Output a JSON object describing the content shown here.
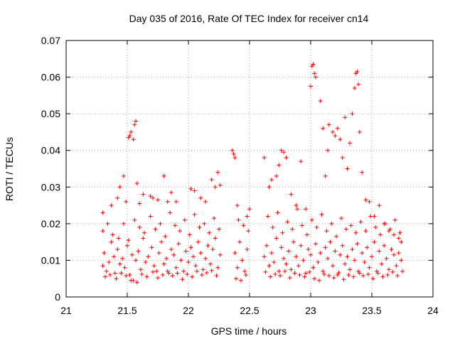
{
  "chart_data": {
    "type": "scatter",
    "title": "Day 035 of 2016, Rate Of TEC Index for receiver cn14",
    "xlabel": "GPS time / hours",
    "ylabel": "ROTI / TECUs",
    "xlim": [
      21,
      24
    ],
    "ylim": [
      0,
      0.07
    ],
    "grid": true,
    "marker": "+",
    "color": "#ff0000",
    "x_ticks": [
      "21",
      "21.5",
      "22",
      "22.5",
      "23",
      "23.5",
      "24"
    ],
    "y_ticks": [
      "0",
      "0.01",
      "0.02",
      "0.03",
      "0.04",
      "0.05",
      "0.06",
      "0.07"
    ],
    "series": [
      {
        "name": "ROTI",
        "x": [
          21.3,
          21.31,
          21.33,
          21.35,
          21.37,
          21.39,
          21.4,
          21.42,
          21.44,
          21.46,
          21.48,
          21.5,
          21.52,
          21.54,
          21.55,
          21.57,
          21.59,
          21.61,
          21.63,
          21.65,
          21.67,
          21.7,
          21.72,
          21.74,
          21.76,
          21.78,
          21.8,
          21.82,
          21.84,
          21.86,
          21.88,
          21.9,
          21.92,
          21.94,
          21.96,
          21.98,
          22.0,
          22.02,
          22.04,
          22.06,
          22.08,
          22.1,
          22.12,
          22.14,
          22.16,
          22.18,
          22.2,
          22.22,
          22.24,
          22.26,
          22.38,
          22.4,
          22.42,
          22.44,
          22.46,
          22.48,
          22.62,
          22.64,
          22.66,
          22.68,
          22.7,
          22.72,
          22.74,
          22.76,
          22.78,
          22.8,
          22.82,
          22.84,
          22.86,
          22.88,
          22.9,
          22.92,
          22.94,
          22.96,
          22.98,
          23.0,
          23.02,
          23.04,
          23.06,
          23.08,
          23.1,
          23.12,
          23.14,
          23.16,
          23.18,
          23.2,
          23.22,
          23.24,
          23.26,
          23.28,
          23.3,
          23.32,
          23.34,
          23.36,
          23.38,
          23.4,
          23.42,
          23.44,
          23.46,
          23.48,
          23.5,
          23.52,
          23.54,
          23.56,
          23.58,
          23.6,
          23.62,
          23.64,
          23.66,
          23.68,
          23.7,
          23.72,
          23.74,
          21.32,
          21.36,
          21.41,
          21.45,
          21.49,
          21.53,
          21.58,
          21.62,
          21.66,
          21.71,
          21.75,
          21.79,
          21.83,
          21.87,
          21.91,
          21.95,
          21.99,
          22.03,
          22.07,
          22.11,
          22.15,
          22.19,
          22.23,
          22.39,
          22.43,
          22.47,
          22.63,
          22.67,
          22.71,
          22.75,
          22.79,
          22.83,
          22.87,
          22.91,
          22.95,
          22.99,
          23.03,
          23.07,
          23.11,
          23.15,
          23.19,
          23.23,
          23.27,
          23.31,
          23.35,
          23.39,
          23.43,
          23.47,
          23.51,
          23.55,
          23.59,
          23.63,
          23.67,
          23.71,
          23.75,
          21.3,
          21.38,
          21.43,
          21.47,
          21.51,
          21.56,
          21.6,
          21.64,
          21.69,
          21.73,
          21.77,
          21.81,
          21.85,
          21.89,
          21.93,
          21.97,
          22.01,
          22.05,
          22.09,
          22.13,
          22.17,
          22.21,
          22.25,
          22.41,
          22.45,
          22.49,
          22.65,
          22.69,
          22.73,
          22.77,
          22.81,
          22.85,
          22.89,
          22.93,
          22.97,
          23.01,
          23.05,
          23.09,
          23.13,
          23.17,
          23.21,
          23.25,
          23.29,
          23.33,
          23.37,
          23.41,
          23.45,
          23.49,
          23.53,
          23.57,
          23.61,
          23.65,
          23.69,
          23.73,
          21.3,
          21.34,
          21.37,
          21.42,
          21.44,
          21.51,
          21.52,
          21.53,
          21.55,
          21.56,
          21.57,
          21.58,
          21.47,
          21.49,
          21.6,
          21.63,
          21.69,
          21.71,
          21.75,
          21.8,
          21.83,
          21.86,
          21.9,
          22.02,
          22.05,
          22.1,
          22.14,
          22.19,
          22.22,
          22.24,
          22.26,
          22.36,
          22.37,
          22.38,
          22.4,
          22.48,
          22.5,
          22.62,
          22.66,
          22.68,
          22.72,
          22.74,
          22.76,
          22.78,
          22.8,
          22.84,
          22.88,
          22.92,
          22.96,
          23.0,
          23.01,
          23.02,
          23.03,
          23.04,
          23.08,
          23.1,
          23.12,
          23.14,
          23.15,
          23.18,
          23.2,
          23.22,
          23.24,
          23.26,
          23.28,
          23.3,
          23.32,
          23.34,
          23.36,
          23.37,
          23.38,
          23.39,
          23.4,
          23.42,
          23.45,
          23.48,
          23.52,
          23.56,
          23.6,
          23.64,
          23.68,
          23.72,
          23.74
        ],
        "y": [
          0.0085,
          0.012,
          0.007,
          0.0095,
          0.015,
          0.011,
          0.0065,
          0.013,
          0.009,
          0.0105,
          0.008,
          0.014,
          0.006,
          0.0115,
          0.0045,
          0.01,
          0.0125,
          0.0075,
          0.016,
          0.0095,
          0.011,
          0.0135,
          0.0085,
          0.007,
          0.012,
          0.015,
          0.009,
          0.0105,
          0.0065,
          0.013,
          0.0115,
          0.008,
          0.0145,
          0.01,
          0.007,
          0.0125,
          0.0095,
          0.0135,
          0.011,
          0.0085,
          0.015,
          0.012,
          0.0075,
          0.0105,
          0.014,
          0.009,
          0.013,
          0.016,
          0.008,
          0.0115,
          0.012,
          0.008,
          0.015,
          0.01,
          0.007,
          0.013,
          0.011,
          0.014,
          0.0085,
          0.012,
          0.0095,
          0.016,
          0.007,
          0.0135,
          0.0105,
          0.009,
          0.0125,
          0.0075,
          0.015,
          0.011,
          0.0085,
          0.014,
          0.01,
          0.0065,
          0.013,
          0.0115,
          0.008,
          0.0145,
          0.0095,
          0.012,
          0.007,
          0.0135,
          0.0105,
          0.015,
          0.0085,
          0.0125,
          0.006,
          0.0115,
          0.014,
          0.009,
          0.011,
          0.0075,
          0.013,
          0.01,
          0.0145,
          0.0065,
          0.012,
          0.0095,
          0.0135,
          0.008,
          0.011,
          0.015,
          0.007,
          0.0125,
          0.009,
          0.014,
          0.0105,
          0.0075,
          0.013,
          0.0115,
          0.0085,
          0.012,
          0.01,
          0.0055,
          0.006,
          0.005,
          0.0065,
          0.0058,
          0.0045,
          0.004,
          0.0062,
          0.0055,
          0.0068,
          0.0052,
          0.006,
          0.007,
          0.0058,
          0.0065,
          0.0048,
          0.0062,
          0.0055,
          0.007,
          0.006,
          0.0066,
          0.0072,
          0.0058,
          0.005,
          0.0045,
          0.006,
          0.0068,
          0.0055,
          0.0062,
          0.0058,
          0.007,
          0.0052,
          0.0065,
          0.006,
          0.0055,
          0.0068,
          0.005,
          0.0045,
          0.0062,
          0.0058,
          0.0052,
          0.0066,
          0.0048,
          0.006,
          0.0055,
          0.007,
          0.0058,
          0.0062,
          0.005,
          0.0065,
          0.0055,
          0.006,
          0.0068,
          0.0058,
          0.007,
          0.018,
          0.017,
          0.016,
          0.02,
          0.0155,
          0.021,
          0.019,
          0.0175,
          0.022,
          0.0185,
          0.02,
          0.0165,
          0.023,
          0.0195,
          0.018,
          0.021,
          0.017,
          0.0225,
          0.019,
          0.02,
          0.0175,
          0.0215,
          0.0185,
          0.021,
          0.0195,
          0.018,
          0.022,
          0.019,
          0.023,
          0.0175,
          0.0205,
          0.0185,
          0.024,
          0.0195,
          0.017,
          0.021,
          0.019,
          0.0225,
          0.018,
          0.02,
          0.0165,
          0.0215,
          0.0185,
          0.0195,
          0.0175,
          0.0205,
          0.018,
          0.022,
          0.019,
          0.017,
          0.02,
          0.0185,
          0.021,
          0.0175,
          0.023,
          0.02,
          0.025,
          0.027,
          0.03,
          0.0435,
          0.044,
          0.045,
          0.043,
          0.047,
          0.048,
          0.031,
          0.033,
          0.026,
          0.0255,
          0.028,
          0.0275,
          0.027,
          0.0265,
          0.033,
          0.026,
          0.0285,
          0.026,
          0.0295,
          0.029,
          0.027,
          0.026,
          0.032,
          0.03,
          0.034,
          0.0305,
          0.04,
          0.039,
          0.038,
          0.025,
          0.022,
          0.024,
          0.038,
          0.03,
          0.032,
          0.033,
          0.036,
          0.04,
          0.0395,
          0.038,
          0.028,
          0.025,
          0.037,
          0.024,
          0.0575,
          0.063,
          0.0635,
          0.061,
          0.06,
          0.0535,
          0.046,
          0.033,
          0.04,
          0.047,
          0.045,
          0.044,
          0.046,
          0.043,
          0.038,
          0.049,
          0.035,
          0.042,
          0.05,
          0.057,
          0.061,
          0.0615,
          0.058,
          0.045,
          0.034,
          0.0265,
          0.026,
          0.022,
          0.025,
          0.02,
          0.018,
          0.017,
          0.016,
          0.015
        ]
      }
    ]
  }
}
